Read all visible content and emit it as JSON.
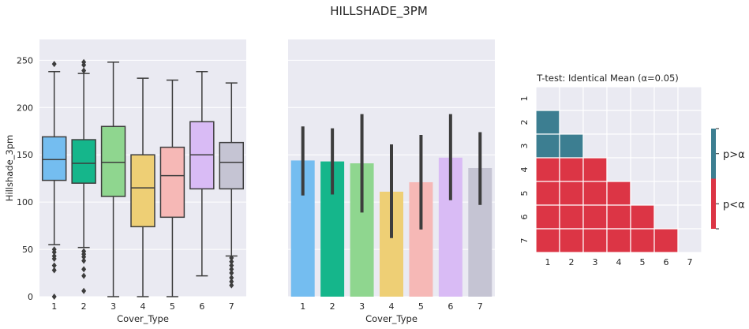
{
  "figure": {
    "suptitle": "HILLSHADE_3PM"
  },
  "palette": {
    "1": "#74bdf0",
    "2": "#15b68b",
    "3": "#8fd68f",
    "4": "#eecf75",
    "5": "#f6b8b6",
    "6": "#d9bbf5",
    "7": "#c5c4d3",
    "panel_bg": "#eaeaf2",
    "line": "#3d3d3d",
    "sig_high": "#3c7e91",
    "sig_low": "#dc3545"
  },
  "chart_data": [
    {
      "type": "box",
      "categories": [
        "1",
        "2",
        "3",
        "4",
        "5",
        "6",
        "7"
      ],
      "xlabel": "Cover_Type",
      "ylabel": "Hillshade_3pm",
      "ylim": [
        0,
        272
      ],
      "yticks": [
        "0",
        "50",
        "100",
        "150",
        "200",
        "250"
      ],
      "boxes": [
        {
          "category": "1",
          "q1": 123,
          "median": 145,
          "q3": 169,
          "whisker_low": 55,
          "whisker_high": 238,
          "outliers": [
            246,
            50,
            47,
            43,
            40,
            33,
            28,
            0
          ]
        },
        {
          "category": "2",
          "q1": 120,
          "median": 141,
          "q3": 166,
          "whisker_low": 52,
          "whisker_high": 236,
          "outliers": [
            248,
            245,
            239,
            48,
            45,
            42,
            38,
            29,
            22,
            6
          ]
        },
        {
          "category": "3",
          "q1": 106,
          "median": 142,
          "q3": 180,
          "whisker_low": 0,
          "whisker_high": 248,
          "outliers": []
        },
        {
          "category": "4",
          "q1": 74,
          "median": 115,
          "q3": 150,
          "whisker_low": 0,
          "whisker_high": 231,
          "outliers": []
        },
        {
          "category": "5",
          "q1": 84,
          "median": 128,
          "q3": 158,
          "whisker_low": 0,
          "whisker_high": 229,
          "outliers": []
        },
        {
          "category": "6",
          "q1": 114,
          "median": 150,
          "q3": 185,
          "whisker_low": 22,
          "whisker_high": 238,
          "outliers": []
        },
        {
          "category": "7",
          "q1": 114,
          "median": 142,
          "q3": 163,
          "whisker_low": 43,
          "whisker_high": 226,
          "outliers": [
            41,
            37,
            33,
            29,
            25,
            20,
            16,
            12
          ]
        }
      ],
      "grid": true
    },
    {
      "type": "bar",
      "categories": [
        "1",
        "2",
        "3",
        "4",
        "5",
        "6",
        "7"
      ],
      "xlabel": "Cover_Type",
      "ylim": [
        0,
        272
      ],
      "values": [
        144,
        143,
        141,
        111,
        121,
        147,
        136
      ],
      "error_low": [
        107,
        108,
        89,
        62,
        71,
        102,
        97
      ],
      "error_high": [
        180,
        178,
        193,
        161,
        171,
        193,
        174
      ],
      "grid": true
    },
    {
      "type": "heatmap",
      "title": "T-test: Identical Mean (α=0.05)",
      "rows": [
        "1",
        "2",
        "3",
        "4",
        "5",
        "6",
        "7"
      ],
      "cols": [
        "1",
        "2",
        "3",
        "4",
        "5",
        "6",
        "7"
      ],
      "cells": [
        [
          null,
          null,
          null,
          null,
          null,
          null,
          null
        ],
        [
          1,
          null,
          null,
          null,
          null,
          null,
          null
        ],
        [
          1,
          1,
          null,
          null,
          null,
          null,
          null
        ],
        [
          0,
          0,
          0,
          null,
          null,
          null,
          null
        ],
        [
          0,
          0,
          0,
          0,
          null,
          null,
          null
        ],
        [
          0,
          0,
          0,
          0,
          0,
          null,
          null
        ],
        [
          0,
          0,
          0,
          0,
          0,
          0,
          null
        ]
      ],
      "legend": [
        {
          "label": "p>α",
          "value": 1
        },
        {
          "label": "p<α",
          "value": 0
        }
      ]
    }
  ]
}
